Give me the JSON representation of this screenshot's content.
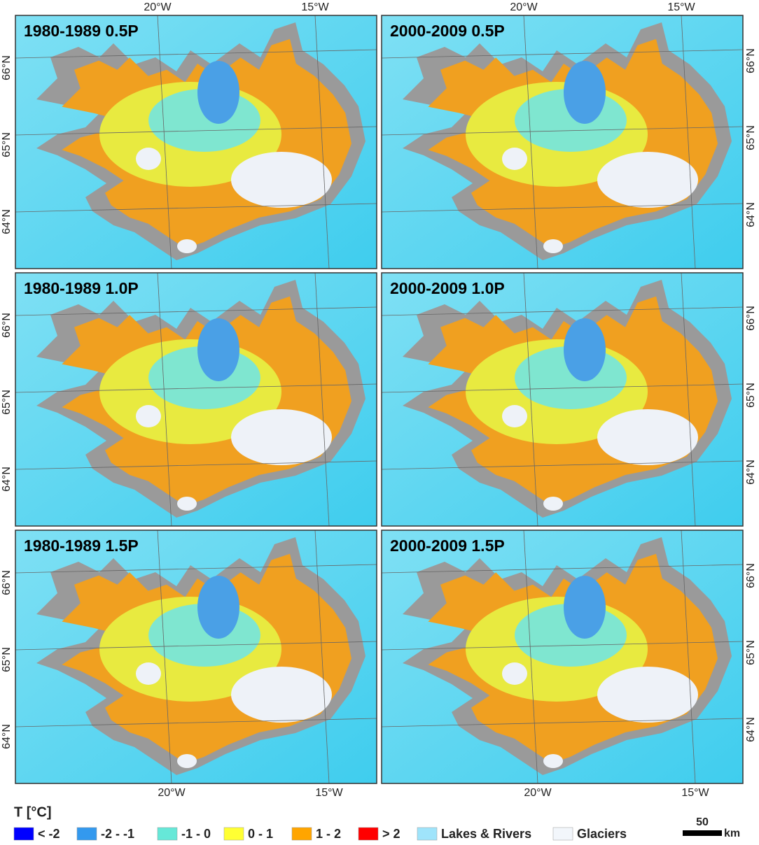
{
  "panels": [
    {
      "title": "1980-1989 0.5P"
    },
    {
      "title": "2000-2009 0.5P"
    },
    {
      "title": "1980-1989 1.0P"
    },
    {
      "title": "2000-2009 1.0P"
    },
    {
      "title": "1980-1989 1.5P"
    },
    {
      "title": "2000-2009 1.5P"
    }
  ],
  "longitude_labels": [
    "20°W",
    "15°W"
  ],
  "latitude_labels": [
    "66°N",
    "65°N",
    "64°N"
  ],
  "legend": {
    "title": "T [°C]",
    "items": [
      {
        "label": "< -2",
        "color": "#0000ff"
      },
      {
        "label": "-2 - -1",
        "color": "#3399ee"
      },
      {
        "label": "-1 - 0",
        "color": "#66e8d8"
      },
      {
        "label": "0 - 1",
        "color": "#ffff33"
      },
      {
        "label": "1 - 2",
        "color": "#ffa500"
      },
      {
        "label": "> 2",
        "color": "#ff0000"
      },
      {
        "label": "Lakes & Rivers",
        "color": "#9fe4fb"
      },
      {
        "label": "Glaciers",
        "color": "#f2f6fb"
      }
    ]
  },
  "scale_bar": {
    "value": 50,
    "unit": "km"
  }
}
